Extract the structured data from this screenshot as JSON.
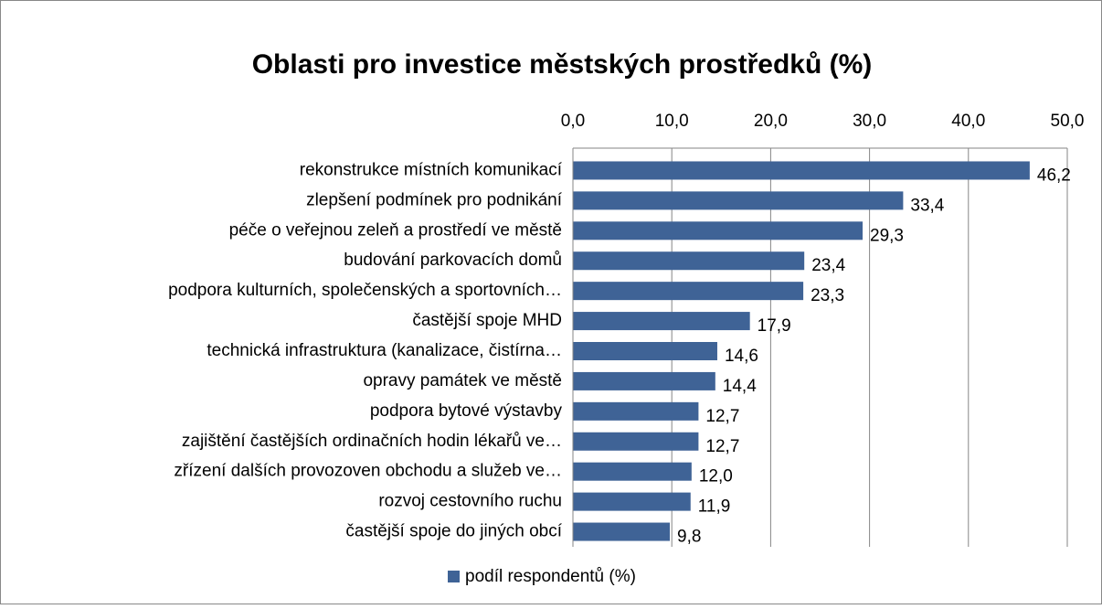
{
  "chart_data": {
    "type": "barh",
    "title": "Oblasti pro investice městských prostředků (%)",
    "categories": [
      "rekonstrukce místních komunikací",
      "zlepšení podmínek pro podnikání",
      "péče o veřejnou zeleň a prostředí ve městě",
      "budování parkovacích domů",
      "podpora kulturních, společenských a sportovních…",
      "častější spoje MHD",
      "technická infrastruktura (kanalizace, čistírna…",
      "opravy památek ve městě",
      "podpora bytové výstavby",
      "zajištění častějších ordinačních hodin lékařů ve…",
      "zřízení dalších provozoven obchodu a služeb ve…",
      "rozvoj cestovního ruchu",
      "častější spoje do jiných obcí"
    ],
    "series": [
      {
        "name": "podíl respondentů (%)",
        "color": "#3f6396",
        "values": [
          46.2,
          33.4,
          29.3,
          23.4,
          23.3,
          17.9,
          14.6,
          14.4,
          12.7,
          12.7,
          12.0,
          11.9,
          9.8
        ],
        "value_labels": [
          "46,2",
          "33,4",
          "29,3",
          "23,4",
          "23,3",
          "17,9",
          "14,6",
          "14,4",
          "12,7",
          "12,7",
          "12,0",
          "11,9",
          "9,8"
        ]
      }
    ],
    "xlim": [
      0,
      50
    ],
    "xticks": [
      {
        "value": 0,
        "label": "0,0"
      },
      {
        "value": 10,
        "label": "10,0"
      },
      {
        "value": 20,
        "label": "20,0"
      },
      {
        "value": 30,
        "label": "30,0"
      },
      {
        "value": 40,
        "label": "40,0"
      },
      {
        "value": 50,
        "label": "50,0"
      }
    ],
    "grid": true,
    "legend": "bottom"
  }
}
